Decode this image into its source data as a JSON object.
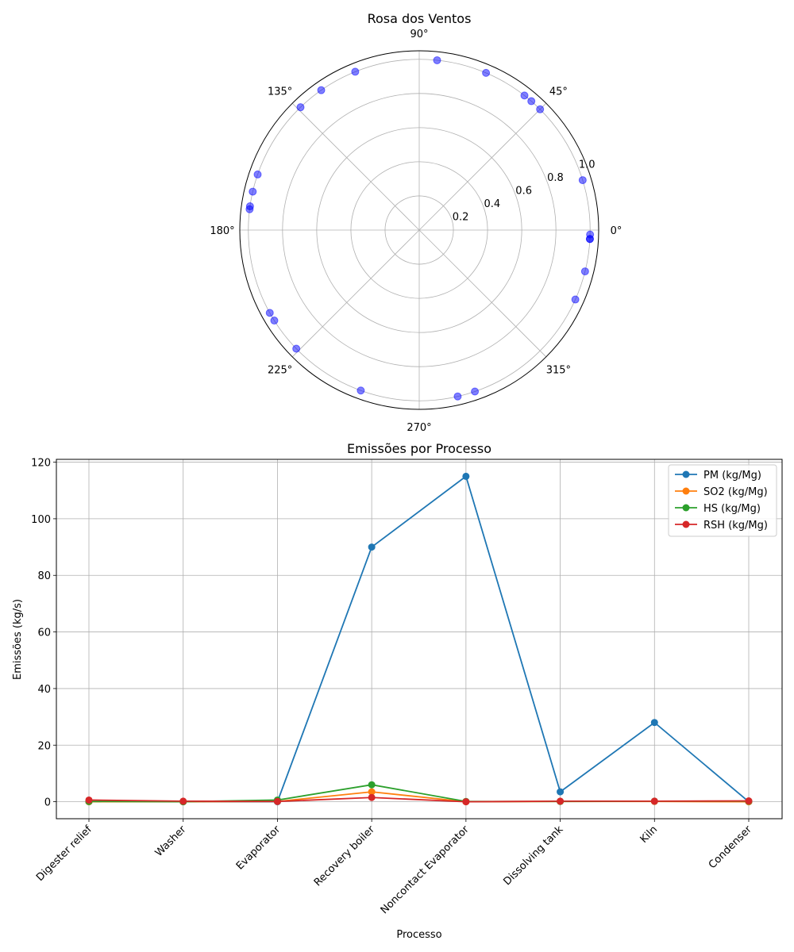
{
  "chart_data": [
    {
      "type": "scatter",
      "coordinate_system": "polar",
      "title": "Rosa dos Ventos",
      "angle_tick_labels": [
        "0°",
        "45°",
        "90°",
        "135°",
        "180°",
        "225°",
        "270°",
        "315°"
      ],
      "radial_tick_labels": [
        "0.2",
        "0.4",
        "0.6",
        "0.8",
        "1.0"
      ],
      "radial_range": [
        0,
        1.05
      ],
      "grid": true,
      "marker_color": "#0000ff",
      "marker_alpha": 0.5,
      "points": [
        {
          "theta_deg": 357,
          "r": 1.0
        },
        {
          "theta_deg": 357,
          "r": 1.0
        },
        {
          "theta_deg": 358.5,
          "r": 1.0
        },
        {
          "theta_deg": 346,
          "r": 1.0
        },
        {
          "theta_deg": 336,
          "r": 1.0
        },
        {
          "theta_deg": 17,
          "r": 1.0
        },
        {
          "theta_deg": 45,
          "r": 1.0
        },
        {
          "theta_deg": 49,
          "r": 1.0
        },
        {
          "theta_deg": 52,
          "r": 1.0
        },
        {
          "theta_deg": 67,
          "r": 1.0
        },
        {
          "theta_deg": 84,
          "r": 1.0
        },
        {
          "theta_deg": 112,
          "r": 1.0
        },
        {
          "theta_deg": 125,
          "r": 1.0
        },
        {
          "theta_deg": 134,
          "r": 1.0
        },
        {
          "theta_deg": 161,
          "r": 1.0
        },
        {
          "theta_deg": 167,
          "r": 1.0
        },
        {
          "theta_deg": 172,
          "r": 1.0
        },
        {
          "theta_deg": 173,
          "r": 1.0
        },
        {
          "theta_deg": 209,
          "r": 1.0
        },
        {
          "theta_deg": 212,
          "r": 1.0
        },
        {
          "theta_deg": 224,
          "r": 1.0
        },
        {
          "theta_deg": 250,
          "r": 1.0
        },
        {
          "theta_deg": 283,
          "r": 1.0
        },
        {
          "theta_deg": 289,
          "r": 1.0
        }
      ]
    },
    {
      "type": "line",
      "title": "Emissões por Processo",
      "xlabel": "Processo",
      "ylabel": "Emissões (kg/s)",
      "categories": [
        "Digester relief",
        "Washer",
        "Evaporator",
        "Recovery boiler",
        "Noncontact Evaporator",
        "Dissolving tank",
        "Kiln",
        "Condenser"
      ],
      "ylim": [
        -6,
        121
      ],
      "yticks": [
        0,
        20,
        40,
        60,
        80,
        100,
        120
      ],
      "grid": true,
      "legend_position": "upper right",
      "series": [
        {
          "name": "PM (kg/Mg)",
          "color": "#1f77b4",
          "values": [
            0,
            0,
            0,
            90,
            115,
            3.5,
            28,
            0
          ]
        },
        {
          "name": "SO2 (kg/Mg)",
          "color": "#ff7f0e",
          "values": [
            0,
            0,
            0.1,
            3.5,
            0,
            0.1,
            0.1,
            0
          ]
        },
        {
          "name": "HS (kg/Mg)",
          "color": "#2ca02c",
          "values": [
            0.1,
            0,
            0.6,
            6,
            0.1,
            0.1,
            0.2,
            0.2
          ]
        },
        {
          "name": "RSH (kg/Mg)",
          "color": "#d62728",
          "values": [
            0.6,
            0.2,
            0.1,
            1.5,
            0,
            0.2,
            0.2,
            0.3
          ]
        }
      ]
    }
  ]
}
